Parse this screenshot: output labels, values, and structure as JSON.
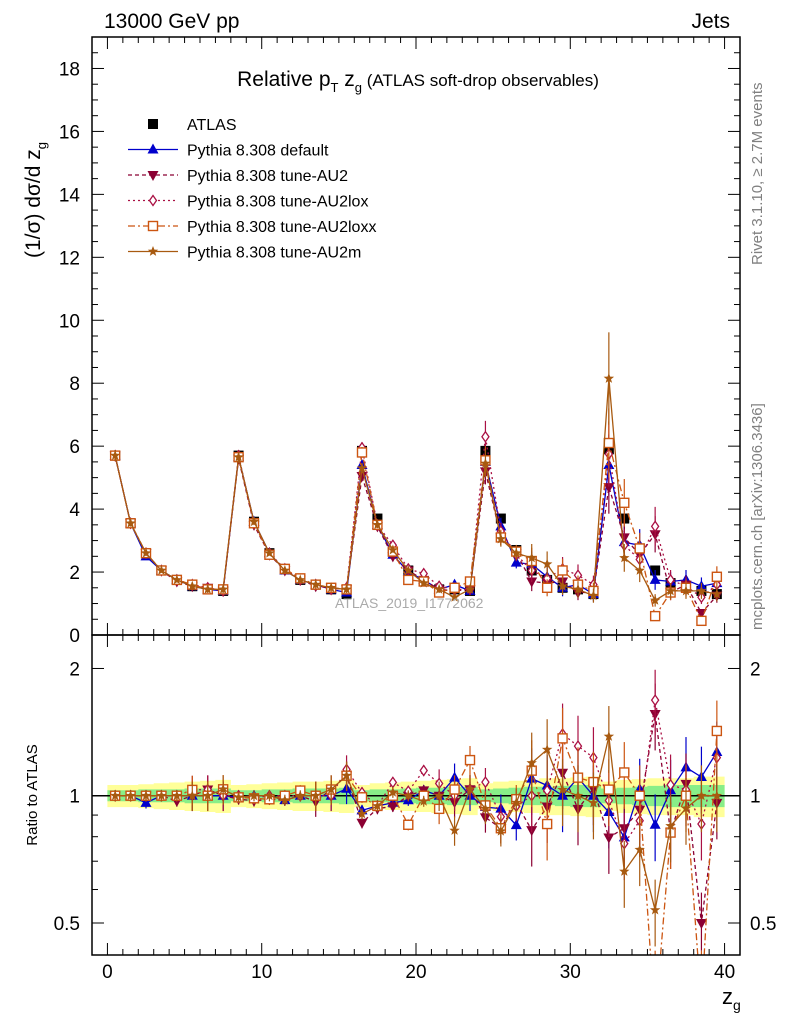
{
  "header": {
    "left": "13000 GeV pp",
    "right": "Jets",
    "side_top": "Rivet 3.1.10, ≥ 2.7M events",
    "side_bottom": "mcplots.cern.ch [arXiv:1306.3436]",
    "watermark": "ATLAS_2019_I1772062"
  },
  "colors": {
    "atlas": "#000000",
    "default": "#0000cc",
    "au2": "#8b0033",
    "au2lox": "#aa1144",
    "au2loxx": "#cc5511",
    "au2m": "#a85a10",
    "band_inner": "#88ee88",
    "band_outer": "#ffff99"
  },
  "chart_data": [
    {
      "type": "line",
      "title_main": "Relative p",
      "title_sub1": "T",
      "title_mid": " z",
      "title_sub2": "g",
      "title_rest": " (ATLAS soft-drop observables)",
      "ylabel": "(1/σ) dσ/d z",
      "ylabel_sub": "g",
      "ylim": [
        0,
        19
      ],
      "xlim": [
        -1,
        41
      ],
      "yticks": [
        "0",
        "2",
        "4",
        "6",
        "8",
        "10",
        "12",
        "14",
        "16",
        "18"
      ],
      "legend_placement": "top-left",
      "x": [
        0.5,
        1.5,
        2.5,
        3.5,
        4.5,
        5.5,
        6.5,
        7.5,
        8.5,
        9.5,
        10.5,
        11.5,
        12.5,
        13.5,
        14.5,
        15.5,
        16.5,
        17.5,
        18.5,
        19.5,
        20.5,
        21.5,
        22.5,
        23.5,
        24.5,
        25.5,
        26.5,
        27.5,
        28.5,
        29.5,
        30.5,
        31.5,
        32.5,
        33.5,
        34.5,
        35.5,
        36.5,
        37.5,
        38.5,
        39.5
      ],
      "series": [
        {
          "name": "ATLAS",
          "key": "atlas",
          "marker": "square",
          "dash": "",
          "values": [
            5.7,
            3.55,
            2.6,
            2.05,
            1.75,
            1.55,
            1.45,
            1.4,
            5.7,
            3.6,
            2.6,
            2.1,
            1.75,
            1.6,
            1.45,
            1.3,
            5.85,
            3.7,
            2.65,
            2.05,
            1.7,
            1.45,
            1.45,
            1.4,
            5.85,
            3.7,
            2.7,
            2.05,
            1.75,
            1.5,
            1.45,
            1.3,
            5.9,
            3.7,
            2.75,
            2.05,
            1.65,
            1.5,
            1.4,
            1.3
          ]
        },
        {
          "name": "Pythia 8.308 default",
          "key": "default",
          "marker": "triangle-up",
          "dash": "",
          "values": [
            5.7,
            3.55,
            2.5,
            2.05,
            1.75,
            1.55,
            1.45,
            1.4,
            5.65,
            3.6,
            2.6,
            2.05,
            1.75,
            1.6,
            1.45,
            1.35,
            5.4,
            3.5,
            2.55,
            2.0,
            1.75,
            1.45,
            1.6,
            1.4,
            5.5,
            3.45,
            2.3,
            2.25,
            1.85,
            1.5,
            1.6,
            1.3,
            5.4,
            2.95,
            2.85,
            1.75,
            1.7,
            1.75,
            1.55,
            1.65
          ]
        },
        {
          "name": "Pythia 8.308 tune-AU2",
          "key": "au2",
          "marker": "triangle-down",
          "dash": "4,3",
          "values": [
            5.7,
            3.55,
            2.6,
            2.05,
            1.7,
            1.55,
            1.5,
            1.4,
            5.6,
            3.5,
            2.55,
            2.05,
            1.75,
            1.55,
            1.5,
            1.45,
            5.05,
            3.45,
            2.5,
            2.05,
            1.75,
            1.45,
            1.4,
            1.45,
            5.2,
            3.1,
            2.6,
            1.7,
            1.65,
            1.7,
            1.35,
            1.35,
            4.7,
            3.1,
            2.55,
            3.2,
            1.35,
            1.6,
            0.7,
            1.25
          ]
        },
        {
          "name": "Pythia 8.308 tune-AU2lox",
          "key": "au2lox",
          "marker": "diamond",
          "dash": "2,3",
          "values": [
            5.7,
            3.55,
            2.6,
            2.05,
            1.75,
            1.6,
            1.5,
            1.4,
            5.7,
            3.55,
            2.6,
            2.1,
            1.75,
            1.6,
            1.45,
            1.5,
            5.95,
            3.5,
            2.85,
            2.1,
            1.95,
            1.55,
            1.45,
            1.45,
            6.3,
            3.3,
            2.55,
            2.05,
            1.8,
            2.1,
            1.9,
            1.6,
            5.75,
            2.85,
            2.4,
            3.45,
            1.75,
            1.55,
            1.2,
            1.6
          ]
        },
        {
          "name": "Pythia 8.308 tune-AU2loxx",
          "key": "au2loxx",
          "marker": "square-open",
          "dash": "7,3,2,3",
          "values": [
            5.7,
            3.55,
            2.6,
            2.05,
            1.75,
            1.6,
            1.45,
            1.45,
            5.65,
            3.55,
            2.55,
            2.1,
            1.8,
            1.6,
            1.5,
            1.45,
            5.8,
            3.5,
            2.65,
            1.75,
            1.7,
            1.35,
            1.5,
            1.7,
            5.55,
            3.1,
            2.65,
            2.35,
            1.5,
            2.05,
            1.6,
            1.4,
            6.1,
            4.2,
            2.75,
            0.6,
            1.35,
            1.5,
            0.45,
            1.85
          ]
        },
        {
          "name": "Pythia 8.308 tune-AU2m",
          "key": "au2m",
          "marker": "star",
          "dash": "",
          "values": [
            5.7,
            3.55,
            2.6,
            2.05,
            1.75,
            1.55,
            1.45,
            1.45,
            5.65,
            3.6,
            2.6,
            2.05,
            1.75,
            1.6,
            1.5,
            1.45,
            5.3,
            3.5,
            2.7,
            2.05,
            1.65,
            1.45,
            1.2,
            1.45,
            5.45,
            3.05,
            2.6,
            2.45,
            2.25,
            1.55,
            1.45,
            1.25,
            8.15,
            2.45,
            2.05,
            1.1,
            1.4,
            1.4,
            1.4,
            1.3
          ]
        }
      ]
    },
    {
      "type": "line",
      "ylabel": "Ratio to ATLAS",
      "xlabel": "z",
      "xlabel_sub": "g",
      "ylim": [
        0.42,
        2.4
      ],
      "xlim": [
        -1,
        41
      ],
      "yscale": "log",
      "yticks": [
        "0.5",
        "1",
        "2"
      ],
      "xticks": [
        "0",
        "10",
        "20",
        "30",
        "40"
      ],
      "band_inner_half": [
        0.03,
        0.03,
        0.035,
        0.035,
        0.035,
        0.04,
        0.04,
        0.04,
        0.03,
        0.03,
        0.035,
        0.035,
        0.04,
        0.04,
        0.04,
        0.045,
        0.03,
        0.035,
        0.035,
        0.04,
        0.045,
        0.045,
        0.05,
        0.05,
        0.035,
        0.04,
        0.045,
        0.05,
        0.05,
        0.055,
        0.06,
        0.06,
        0.04,
        0.045,
        0.05,
        0.055,
        0.06,
        0.06,
        0.06,
        0.06
      ],
      "band_outer_half": [
        0.06,
        0.06,
        0.065,
        0.07,
        0.075,
        0.08,
        0.085,
        0.09,
        0.06,
        0.065,
        0.07,
        0.075,
        0.08,
        0.08,
        0.085,
        0.09,
        0.06,
        0.07,
        0.075,
        0.08,
        0.085,
        0.09,
        0.095,
        0.1,
        0.07,
        0.08,
        0.085,
        0.09,
        0.1,
        0.1,
        0.105,
        0.11,
        0.08,
        0.09,
        0.095,
        0.1,
        0.1,
        0.1,
        0.11,
        0.11
      ]
    }
  ]
}
